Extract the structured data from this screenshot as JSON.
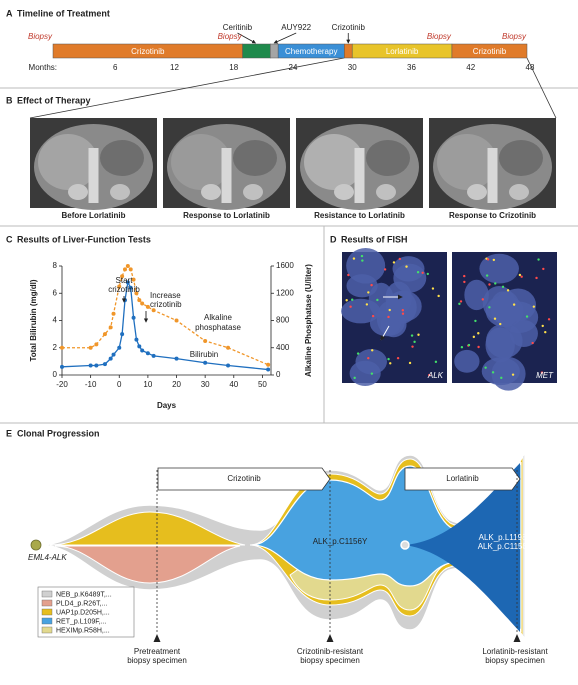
{
  "panel_a": {
    "label": "A",
    "title": "Timeline of Treatment",
    "axis_label": "Months:",
    "xlim": [
      0,
      48
    ],
    "ticks": [
      6,
      12,
      18,
      24,
      30,
      36,
      42,
      48
    ],
    "segments": [
      {
        "name": "Crizotinib",
        "start": 0,
        "end": 19.2,
        "color": "#e07b2a"
      },
      {
        "start": 19.2,
        "end": 22,
        "color": "#1f8a4c"
      },
      {
        "start": 22,
        "end": 22.8,
        "color": "#a5a5a5"
      },
      {
        "name": "Chemotherapy",
        "start": 22.8,
        "end": 29.5,
        "color": "#3a8fd6"
      },
      {
        "start": 29.5,
        "end": 30.3,
        "color": "#e07b2a"
      },
      {
        "name": "Lorlatinib",
        "start": 30.3,
        "end": 40.4,
        "color": "#e8c42a"
      },
      {
        "name": "Crizotinib",
        "start": 40.4,
        "end": 48,
        "color": "#e07b2a"
      }
    ],
    "callouts": [
      {
        "text": "Ceritinib",
        "month": 20.5
      },
      {
        "text": "AUY922",
        "month": 22.4
      },
      {
        "text": "Crizotinib",
        "month": 29.9
      }
    ],
    "biopsies": [
      {
        "text": "Biopsy",
        "month": 0
      },
      {
        "text": "Biopsy",
        "month": 19.2
      },
      {
        "text": "Biopsy",
        "month": 40.4
      },
      {
        "text": "Biopsy",
        "month": 48
      }
    ]
  },
  "panel_b": {
    "label": "B",
    "title": "Effect of Therapy",
    "images": [
      {
        "caption": "Before Lorlatinib"
      },
      {
        "caption": "Response to Lorlatinib"
      },
      {
        "caption": "Resistance to Lorlatinib"
      },
      {
        "caption": "Response to Crizotinib"
      }
    ]
  },
  "chart_data": {
    "type": "line",
    "label": "C",
    "title": "Results of Liver-Function Tests",
    "xlabel": "Days",
    "ylabel": "Total Bilirubin (mg/dl)",
    "y2label": "Alkaline Phosphatase (U/liter)",
    "x": [
      -20,
      -10,
      -8,
      -5,
      -3,
      -2,
      0,
      1,
      2,
      3,
      4,
      5,
      6,
      7,
      8,
      10,
      12,
      20,
      30,
      38,
      52
    ],
    "series": [
      {
        "name": "Bilirubin",
        "color": "#1f6fbf",
        "values": [
          0.6,
          0.7,
          0.7,
          0.8,
          1.2,
          1.5,
          2.0,
          3.0,
          5.5,
          6.8,
          6.4,
          4.2,
          2.6,
          2.1,
          1.8,
          1.6,
          1.4,
          1.2,
          0.9,
          0.7,
          0.4
        ]
      },
      {
        "name": "Alkaline phosphatase",
        "color": "#f0962a",
        "axis": "y2",
        "values": [
          400,
          400,
          450,
          600,
          700,
          900,
          1300,
          1450,
          1550,
          1600,
          1550,
          1400,
          1200,
          1100,
          1050,
          1000,
          950,
          800,
          500,
          400,
          150
        ]
      }
    ],
    "annotations": [
      {
        "lines": [
          "Start",
          "crizotinib"
        ]
      },
      {
        "lines": [
          "Increase",
          "crizotinib"
        ]
      }
    ],
    "xlim": [
      -20,
      53
    ],
    "xticks": [
      -20,
      -10,
      0,
      10,
      20,
      30,
      40,
      50
    ],
    "ylim": [
      0,
      8
    ],
    "yticks": [
      0,
      2,
      4,
      6,
      8
    ],
    "y2lim": [
      0,
      1600
    ],
    "y2ticks": [
      0,
      400,
      800,
      1200,
      1600
    ]
  },
  "panel_d": {
    "label": "D",
    "title": "Results of FISH",
    "images": [
      {
        "label": "ALK"
      },
      {
        "label": "MET"
      }
    ]
  },
  "panel_e": {
    "label": "E",
    "title": "Clonal Progression",
    "treatments": [
      "Crizotinib",
      "Lorlatinib"
    ],
    "root": "EML4-ALK",
    "clone": "ALK_p.C1156Y",
    "late_clone": [
      "ALK_p.L1198F",
      "ALK_p.C1156Y"
    ],
    "legend": [
      {
        "name": "NEB_p.K6489T,...",
        "color": "#d0d0d0"
      },
      {
        "name": "PLD4_p.R26T,...",
        "color": "#e3a08e"
      },
      {
        "name": "UAP1p.D205H,...",
        "color": "#e6be1e"
      },
      {
        "name": "RET_p.L109F,...",
        "color": "#48a2e0"
      },
      {
        "name": "HEXIMp.R58H,...",
        "color": "#e2d98e"
      }
    ],
    "specimens": [
      [
        "Pretreatment",
        "biopsy specimen"
      ],
      [
        "Crizotinib-resistant",
        "biopsy specimen"
      ],
      [
        "Lorlatinib-resistant",
        "biopsy specimen"
      ]
    ]
  }
}
